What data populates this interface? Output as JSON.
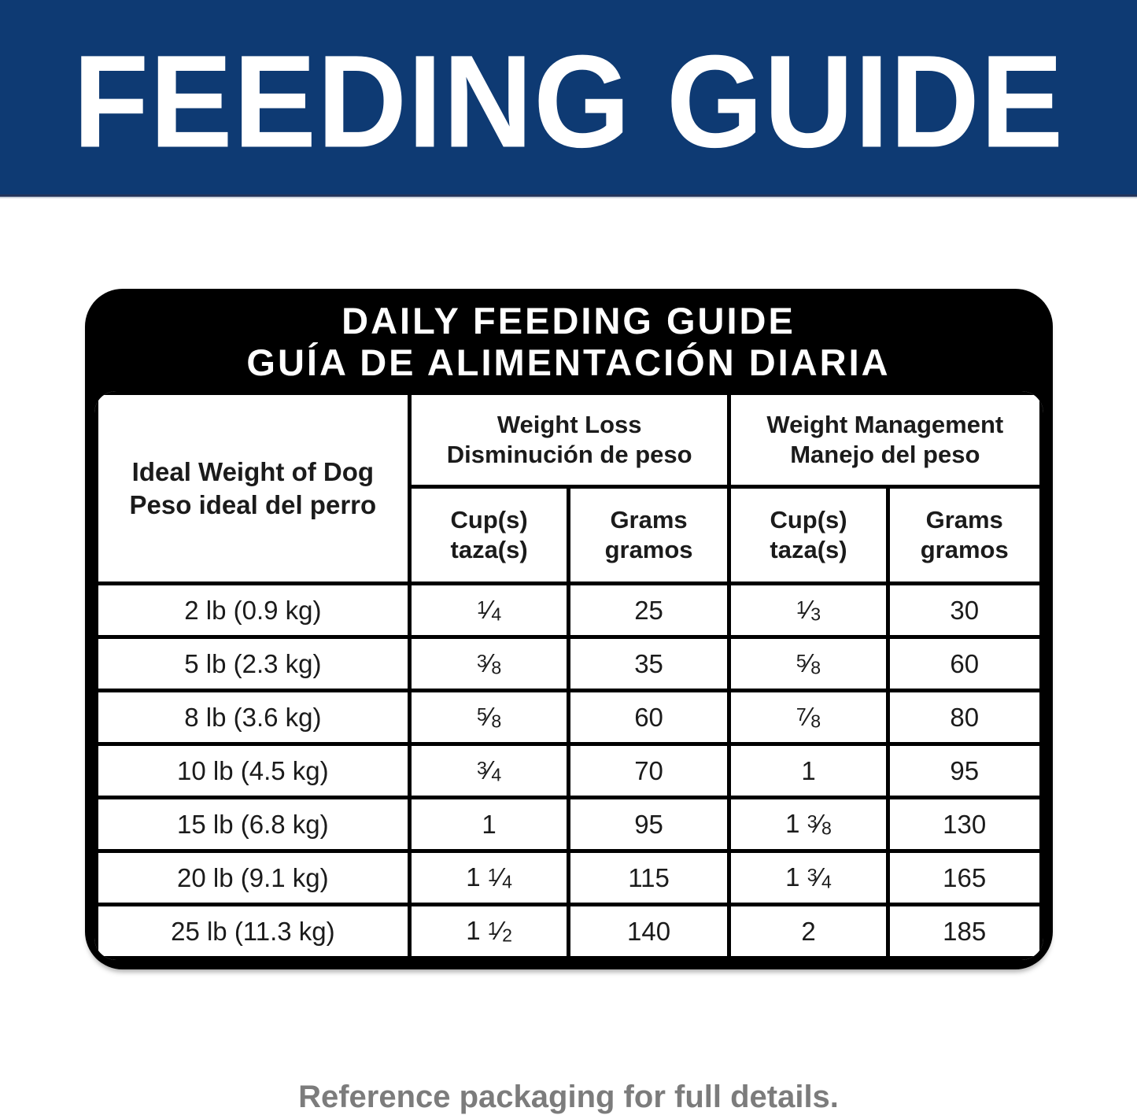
{
  "banner": {
    "title": "FEEDING GUIDE",
    "bg_color": "#0e3a73",
    "text_color": "#ffffff"
  },
  "guide": {
    "title_line1": "DAILY FEEDING GUIDE",
    "title_line2": "GUÍA DE ALIMENTACIÓN DIARIA",
    "header": {
      "weight_col_line1": "Ideal Weight of Dog",
      "weight_col_line2": "Peso ideal del perro",
      "groups": [
        {
          "en": "Weight Loss",
          "es": "Disminución de peso"
        },
        {
          "en": "Weight Management",
          "es": "Manejo del peso"
        }
      ],
      "subcols": [
        {
          "en": "Cup(s)",
          "es": "taza(s)"
        },
        {
          "en": "Grams",
          "es": "gramos"
        },
        {
          "en": "Cup(s)",
          "es": "taza(s)"
        },
        {
          "en": "Grams",
          "es": "gramos"
        }
      ]
    },
    "rows": [
      {
        "weight": "2 lb (0.9 kg)",
        "loss_cups": "1/4",
        "loss_grams": "25",
        "mgmt_cups": "1/3",
        "mgmt_grams": "30"
      },
      {
        "weight": "5 lb (2.3 kg)",
        "loss_cups": "3/8",
        "loss_grams": "35",
        "mgmt_cups": "5/8",
        "mgmt_grams": "60"
      },
      {
        "weight": "8 lb (3.6 kg)",
        "loss_cups": "5/8",
        "loss_grams": "60",
        "mgmt_cups": "7/8",
        "mgmt_grams": "80"
      },
      {
        "weight": "10 lb (4.5 kg)",
        "loss_cups": "3/4",
        "loss_grams": "70",
        "mgmt_cups": "1",
        "mgmt_grams": "95"
      },
      {
        "weight": "15 lb (6.8 kg)",
        "loss_cups": "1",
        "loss_grams": "95",
        "mgmt_cups": "1 3/8",
        "mgmt_grams": "130"
      },
      {
        "weight": "20 lb (9.1 kg)",
        "loss_cups": "1 1/4",
        "loss_grams": "115",
        "mgmt_cups": "1 3/4",
        "mgmt_grams": "165"
      },
      {
        "weight": "25 lb (11.3 kg)",
        "loss_cups": "1 1/2",
        "loss_grams": "140",
        "mgmt_cups": "2",
        "mgmt_grams": "185"
      }
    ]
  },
  "footer": {
    "note": "Reference packaging for full details."
  }
}
